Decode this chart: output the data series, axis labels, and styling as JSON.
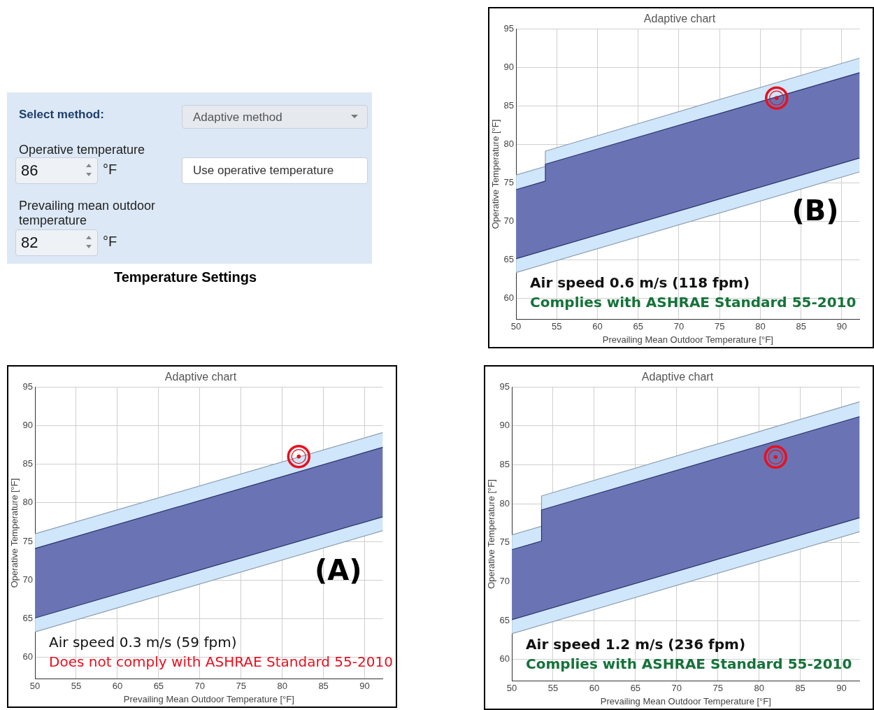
{
  "chart_data": [
    {
      "type": "other",
      "title": "Temperature Settings",
      "annotations": [
        "Select method:",
        "Adaptive method",
        "Operative temperature",
        "86",
        "°F",
        "Use operative temperature",
        "Prevailing mean outdoor temperature",
        "82",
        "°F"
      ]
    },
    {
      "type": "area",
      "title": "Adaptive chart",
      "xlabel": "Prevailing Mean Outdoor Temperature [°F]",
      "ylabel": "Operative Temperature [°F]",
      "xlim": [
        50,
        92.2
      ],
      "ylim": [
        57.2,
        95
      ],
      "xticks": [
        50,
        55,
        60,
        65,
        70,
        75,
        80,
        85,
        90
      ],
      "yticks": [
        60,
        65,
        70,
        75,
        80,
        85,
        90,
        95
      ],
      "grid": true,
      "annotations": [
        "Air speed 0.6 m/s (118 fpm)",
        "Complies with ASHRAE Standard 55-2010",
        "(B)"
      ],
      "series": [
        {
          "type": "area",
          "color": "#cfe6fb",
          "x": [
            50,
            53.6,
            53.6,
            92.2
          ],
          "values": [
            76,
            77.1,
            79.1,
            91.2
          ]
        },
        {
          "type": "area",
          "color": "#6a74b4",
          "x": [
            50,
            53.6,
            53.6,
            92.2
          ],
          "values": [
            74.1,
            75.2,
            77.4,
            89.3
          ]
        },
        {
          "type": "line",
          "color": "#2a3168",
          "x": [
            50,
            92.2
          ],
          "values": [
            65.1,
            78.2
          ]
        },
        {
          "type": "line",
          "color": "#8c9fae",
          "x": [
            50,
            92.2
          ],
          "values": [
            63.3,
            76.4
          ]
        },
        {
          "type": "scatter",
          "color": "#e8101e",
          "x": [
            82
          ],
          "values": [
            86
          ],
          "marker": "circle"
        }
      ]
    },
    {
      "type": "area",
      "title": "Adaptive chart",
      "xlabel": "Prevailing Mean Outdoor Temperature [°F]",
      "ylabel": "Operative Temperature [°F]",
      "xlim": [
        50,
        92.2
      ],
      "ylim": [
        57.2,
        95
      ],
      "xticks": [
        50,
        55,
        60,
        65,
        70,
        75,
        80,
        85,
        90
      ],
      "yticks": [
        60,
        65,
        70,
        75,
        80,
        85,
        90,
        95
      ],
      "grid": true,
      "annotations": [
        "Air speed 0.3 m/s (59 fpm)",
        "Does not comply with ASHRAE Standard 55-2010",
        "(A)"
      ],
      "series": [
        {
          "type": "area",
          "color": "#cfe6fb",
          "x": [
            50,
            92.2
          ],
          "values": [
            76,
            89.1
          ]
        },
        {
          "type": "area",
          "color": "#6a74b4",
          "x": [
            50,
            92.2
          ],
          "values": [
            74.1,
            87.2
          ]
        },
        {
          "type": "line",
          "color": "#2a3168",
          "x": [
            50,
            92.2
          ],
          "values": [
            65.1,
            78.2
          ]
        },
        {
          "type": "line",
          "color": "#8c9fae",
          "x": [
            50,
            92.2
          ],
          "values": [
            63.3,
            76.4
          ]
        },
        {
          "type": "scatter",
          "color": "#e8101e",
          "x": [
            82
          ],
          "values": [
            86
          ],
          "marker": "circle"
        }
      ]
    },
    {
      "type": "area",
      "title": "Adaptive chart",
      "xlabel": "Prevailing Mean Outdoor Temperature [°F]",
      "ylabel": "Operative Temperature [°F]",
      "xlim": [
        50,
        92.2
      ],
      "ylim": [
        57.2,
        95
      ],
      "xticks": [
        50,
        55,
        60,
        65,
        70,
        75,
        80,
        85,
        90
      ],
      "yticks": [
        60,
        65,
        70,
        75,
        80,
        85,
        90,
        95
      ],
      "grid": true,
      "annotations": [
        "Air speed 1.2 m/s (236 fpm)",
        "Complies with ASHRAE Standard 55-2010"
      ],
      "series": [
        {
          "type": "area",
          "color": "#cfe6fb",
          "x": [
            50,
            53.6,
            53.6,
            92.2
          ],
          "values": [
            76,
            77.1,
            81,
            93.1
          ]
        },
        {
          "type": "area",
          "color": "#6a74b4",
          "x": [
            50,
            53.6,
            53.6,
            92.2
          ],
          "values": [
            74.1,
            75.2,
            79.2,
            91.2
          ]
        },
        {
          "type": "line",
          "color": "#2a3168",
          "x": [
            50,
            92.2
          ],
          "values": [
            65.1,
            78.2
          ]
        },
        {
          "type": "line",
          "color": "#8c9fae",
          "x": [
            50,
            92.2
          ],
          "values": [
            63.3,
            76.4
          ]
        },
        {
          "type": "scatter",
          "color": "#e8101e",
          "x": [
            82
          ],
          "values": [
            86
          ],
          "marker": "circle"
        }
      ]
    }
  ]
}
